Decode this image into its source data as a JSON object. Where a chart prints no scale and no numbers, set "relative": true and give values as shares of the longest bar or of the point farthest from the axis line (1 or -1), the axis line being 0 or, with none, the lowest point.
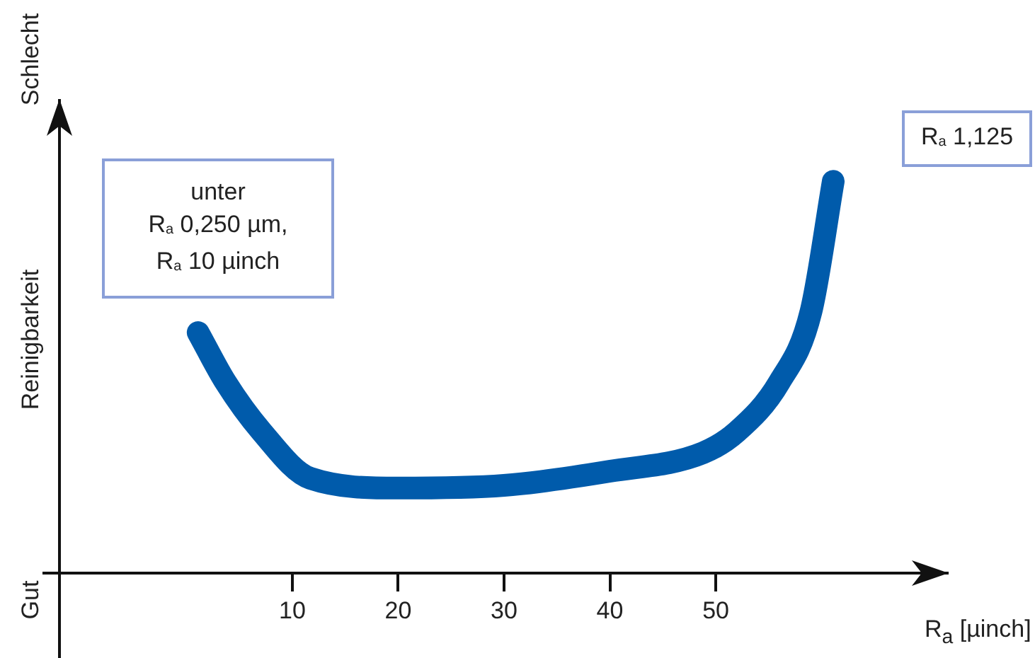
{
  "chart_data": {
    "type": "line",
    "relative": true,
    "xlabel": "R$_{a}$ [µinch]",
    "ylabel": "Reinigbarkeit",
    "annotations": [
      "unter\nR$_{a}$ 0,250 µm,\nR$_{a}$ 10 µinch",
      "R$_{a}$ 1,125",
      "Gut",
      "Schlecht"
    ],
    "xlim": [
      -12,
      72
    ],
    "xticks": [
      10,
      20,
      30,
      40,
      50
    ],
    "grid": false,
    "legend": false,
    "marker": "none",
    "line_style": "solid",
    "series": [
      {
        "color": "#005bab",
        "x": [
          1.1,
          3.7,
          7.1,
          11.7,
          20,
          30,
          40,
          48.8,
          52,
          56,
          59,
          61.1
        ],
        "values": [
          0.614,
          0.487,
          0.361,
          0.242,
          0.217,
          0.224,
          0.26,
          0.307,
          0.361,
          0.487,
          0.668,
          1
        ]
      }
    ]
  }
}
